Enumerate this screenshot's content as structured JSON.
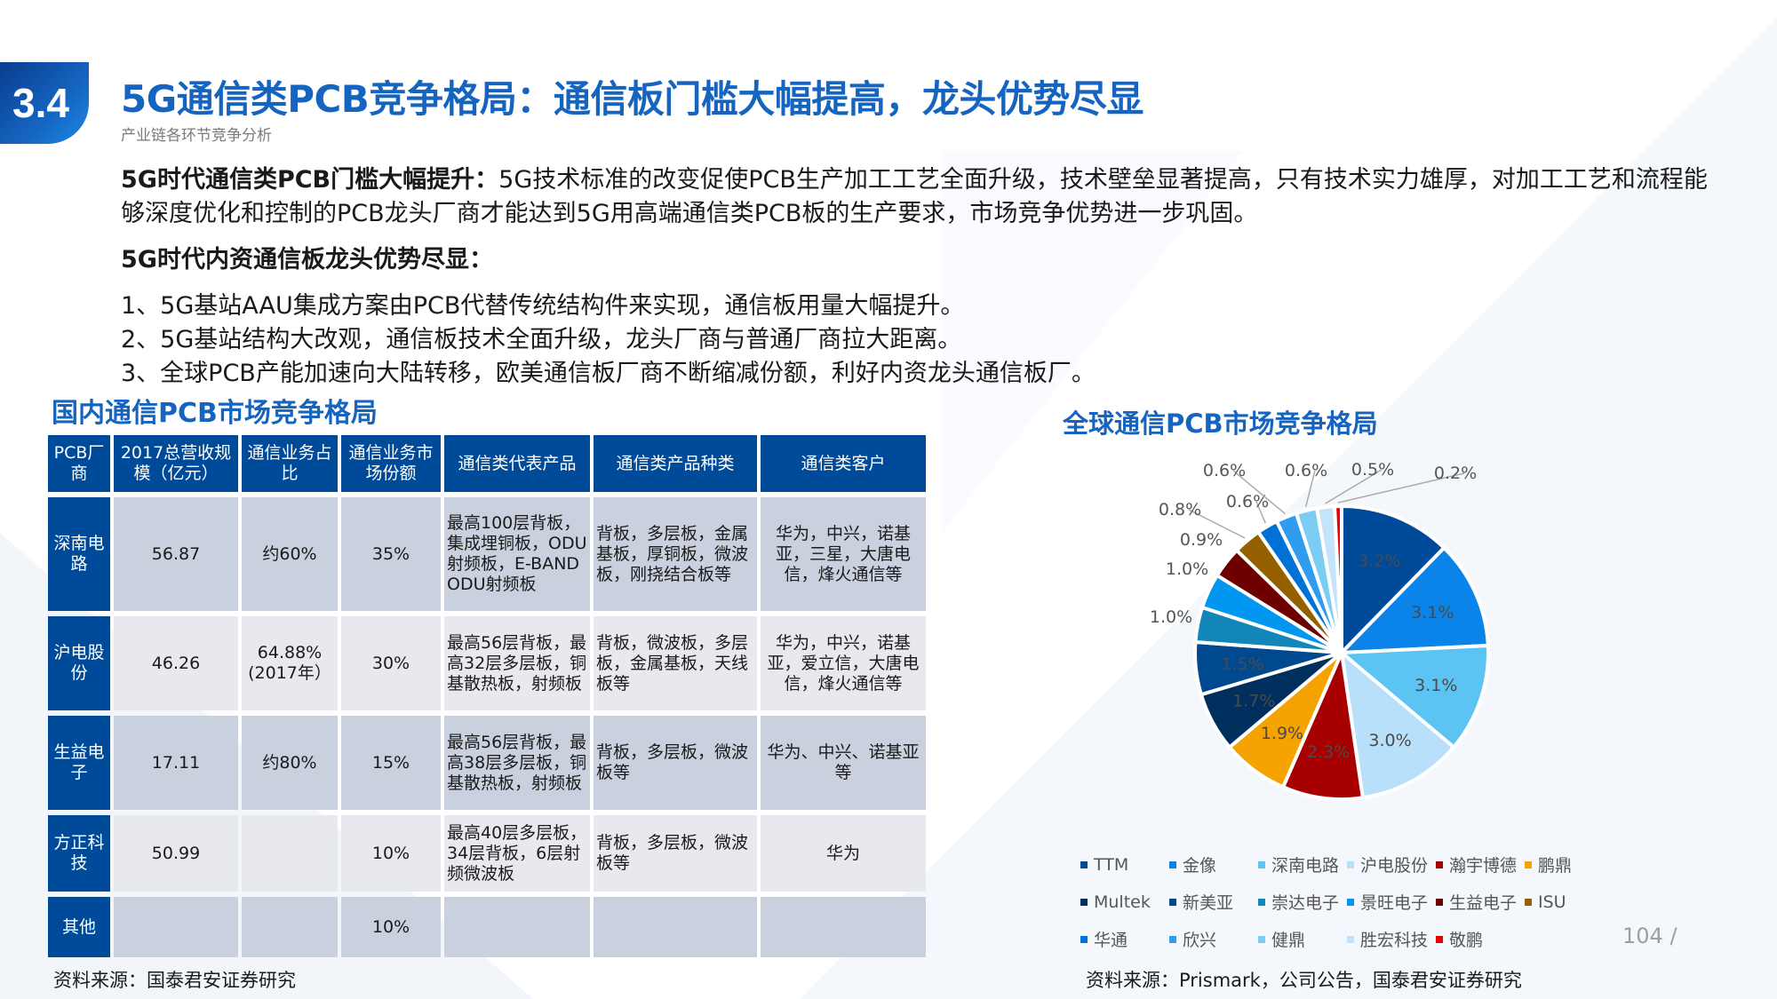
{
  "header": {
    "section_number": "3.4",
    "title": "5G通信类PCB竞争格局：通信板门槛大幅提高，龙头优势尽显",
    "subtitle": "产业链各环节竞争分析"
  },
  "body": {
    "para1_bold": "5G时代通信类PCB门槛大幅提升：",
    "para1_text": "5G技术标准的改变促使PCB生产加工工艺全面升级，技术壁垒显著提高，只有技术实力雄厚，对加工工艺和流程能够深度优化和控制的PCB龙头厂商才能达到5G用高端通信类PCB板的生产要求，市场竞争优势进一步巩固。",
    "heading2": "5G时代内资通信板龙头优势尽显：",
    "list": [
      "1、5G基站AAU集成方案由PCB代替传统结构件来实现，通信板用量大幅提升。",
      "2、5G基站结构大改观，通信板技术全面升级，龙头厂商与普通厂商拉大距离。",
      "3、全球PCB产能加速向大陆转移，欧美通信板厂商不断缩减份额，利好内资龙头通信板厂。"
    ]
  },
  "table": {
    "title": "国内通信PCB市场竞争格局",
    "headers": [
      "PCB厂商",
      "2017总营收规模（亿元）",
      "通信业务占比",
      "通信业务市场份额",
      "通信类代表产品",
      "通信类产品种类",
      "通信类客户"
    ],
    "rows": [
      [
        "深南电路",
        "56.87",
        "约60%",
        "35%",
        "最高100层背板，集成埋铜板，ODU射频板，E-BAND ODU射频板",
        "背板，多层板，金属基板，厚铜板，微波板，刚挠结合板等",
        "华为，中兴，诺基亚，三星，大唐电信，烽火通信等"
      ],
      [
        "沪电股份",
        "46.26",
        "64.88%(2017年）",
        "30%",
        "最高56层背板，最高32层多层板，铜基散热板，射频板",
        "背板，微波板，多层板，金属基板，天线板等",
        "华为，中兴，诺基亚，爱立信，大唐电信，烽火通信等"
      ],
      [
        "生益电子",
        "17.11",
        "约80%",
        "15%",
        "最高56层背板，最高38层多层板，铜基散热板，射频板",
        "背板，多层板，微波板等",
        "华为、中兴、诺基亚等"
      ],
      [
        "方正科技",
        "50.99",
        "",
        "10%",
        "最高40层多层板，34层背板，6层射频微波板",
        "背板，多层板，微波板等",
        "华为"
      ],
      [
        "其他",
        "",
        "",
        "10%",
        "",
        "",
        ""
      ]
    ],
    "source": "资料来源：国泰君安证券研究"
  },
  "chart_data": {
    "type": "pie",
    "title": "全球通信PCB市场竞争格局",
    "categories": [
      "TTM",
      "金像",
      "深南电路",
      "沪电股份",
      "瀚宇博德",
      "鹏鼎",
      "Multek",
      "新美亚",
      "崇达电子",
      "景旺电子",
      "生益电子",
      "ISU",
      "华通",
      "欣兴",
      "健鼎",
      "胜宏科技",
      "敬鹏"
    ],
    "values": [
      3.2,
      3.1,
      3.1,
      3.0,
      2.3,
      1.9,
      1.7,
      1.5,
      1.0,
      1.0,
      0.9,
      0.8,
      0.6,
      0.6,
      0.6,
      0.5,
      0.2
    ],
    "labels": [
      "3.2%",
      "3.1%",
      "3.1%",
      "3.0%",
      "2.3%",
      "1.9%",
      "1.7%",
      "1.5%",
      "1.0%",
      "1.0%",
      "0.9%",
      "0.8%",
      "0.6%",
      "0.6%",
      "0.6%",
      "0.5%",
      "0.2%"
    ],
    "colors": [
      "#004b99",
      "#0a84e8",
      "#5bc4f2",
      "#b8e0fa",
      "#a80000",
      "#f4a300",
      "#002f5e",
      "#00498f",
      "#1286b8",
      "#0196f0",
      "#6e0000",
      "#946000",
      "#0072d6",
      "#2f9cf0",
      "#7ccdf4",
      "#c4e4fa",
      "#ee0000"
    ],
    "legend_position": "bottom"
  },
  "chart_source": "资料来源：Prismark，公司公告，国泰君安证券研究",
  "page_number": "104 /"
}
